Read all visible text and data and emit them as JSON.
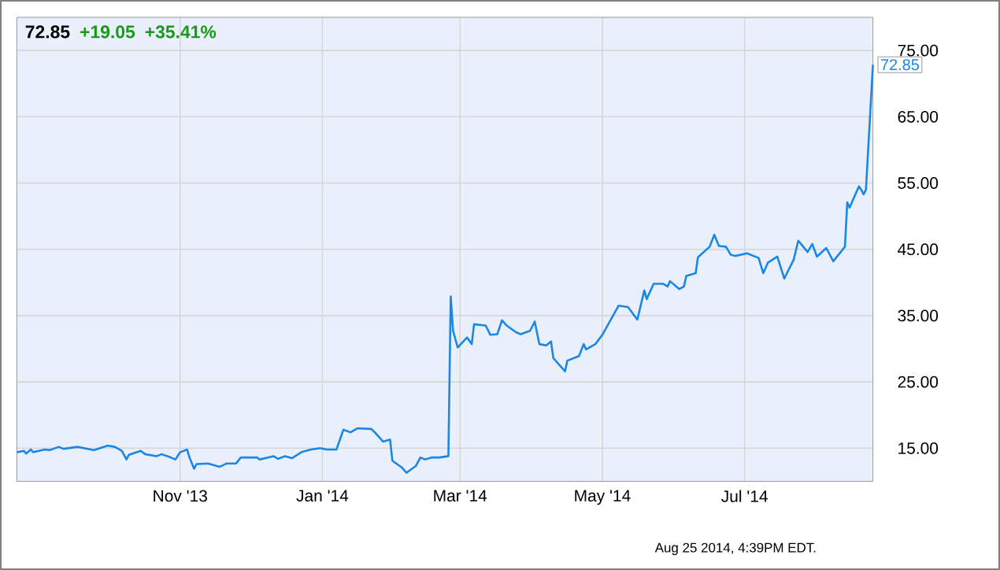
{
  "chart_data": {
    "type": "line",
    "title": "72.85",
    "annotations": [
      "+19.05",
      "+35.41%",
      {
        "text": "72.85",
        "x": "2014-08-25",
        "y": 72.85
      },
      "Aug 25 2014, 4:39PM EDT."
    ],
    "x": [
      "2013-08-23",
      "2013-08-26",
      "2013-08-27",
      "2013-08-29",
      "2013-08-30",
      "2013-09-04",
      "2013-09-06",
      "2013-09-10",
      "2013-09-12",
      "2013-09-18",
      "2013-09-25",
      "2013-10-01",
      "2013-10-04",
      "2013-10-07",
      "2013-10-09",
      "2013-10-10",
      "2013-10-15",
      "2013-10-17",
      "2013-10-22",
      "2013-10-24",
      "2013-10-28",
      "2013-10-30",
      "2013-11-01",
      "2013-11-04",
      "2013-11-05",
      "2013-11-07",
      "2013-11-08",
      "2013-11-13",
      "2013-11-18",
      "2013-11-21",
      "2013-11-25",
      "2013-11-27",
      "2013-12-04",
      "2013-12-05",
      "2013-12-11",
      "2013-12-13",
      "2013-12-16",
      "2013-12-19",
      "2013-12-23",
      "2013-12-27",
      "2013-12-31",
      "2014-01-03",
      "2014-01-07",
      "2014-01-10",
      "2014-01-13",
      "2014-01-16",
      "2014-01-22",
      "2014-01-24",
      "2014-01-27",
      "2014-01-30",
      "2014-01-31",
      "2014-02-04",
      "2014-02-06",
      "2014-02-10",
      "2014-02-12",
      "2014-02-14",
      "2014-02-17",
      "2014-02-20",
      "2014-02-24",
      "2014-02-25",
      "2014-02-26",
      "2014-02-28",
      "2014-03-04",
      "2014-03-06",
      "2014-03-07",
      "2014-03-12",
      "2014-03-14",
      "2014-03-17",
      "2014-03-18",
      "2014-03-19",
      "2014-03-21",
      "2014-03-25",
      "2014-03-27",
      "2014-03-31",
      "2014-04-02",
      "2014-04-04",
      "2014-04-07",
      "2014-04-09",
      "2014-04-10",
      "2014-04-15",
      "2014-04-16",
      "2014-04-21",
      "2014-04-23",
      "2014-04-24",
      "2014-04-28",
      "2014-05-01",
      "2014-05-07",
      "2014-05-08",
      "2014-05-12",
      "2014-05-16",
      "2014-05-19",
      "2014-05-20",
      "2014-05-23",
      "2014-05-27",
      "2014-05-29",
      "2014-05-30",
      "2014-06-03",
      "2014-06-05",
      "2014-06-06",
      "2014-06-10",
      "2014-06-11",
      "2014-06-16",
      "2014-06-18",
      "2014-06-20",
      "2014-06-23",
      "2014-06-25",
      "2014-06-27",
      "2014-07-02",
      "2014-07-07",
      "2014-07-09",
      "2014-07-10",
      "2014-07-11",
      "2014-07-15",
      "2014-07-18",
      "2014-07-22",
      "2014-07-24",
      "2014-07-28",
      "2014-07-30",
      "2014-08-01",
      "2014-08-05",
      "2014-08-08",
      "2014-08-13",
      "2014-08-14",
      "2014-08-15",
      "2014-08-19",
      "2014-08-20",
      "2014-08-21",
      "2014-08-22",
      "2014-08-25"
    ],
    "series": [
      {
        "color": "#1a87e6",
        "values": [
          14.4,
          14.6,
          14.2,
          14.8,
          14.4,
          14.8,
          14.7,
          15.2,
          14.9,
          15.2,
          14.7,
          15.4,
          15.2,
          14.6,
          13.3,
          14.0,
          14.6,
          14.1,
          13.8,
          14.1,
          13.6,
          13.3,
          14.4,
          14.8,
          13.6,
          11.9,
          12.6,
          12.7,
          12.2,
          12.7,
          12.7,
          13.6,
          13.6,
          13.3,
          13.8,
          13.4,
          13.8,
          13.5,
          14.4,
          14.8,
          15.0,
          14.8,
          14.8,
          17.8,
          17.4,
          18.0,
          17.9,
          17.2,
          16.0,
          16.3,
          13.1,
          12.1,
          11.3,
          12.3,
          13.6,
          13.3,
          13.6,
          13.6,
          13.8,
          37.9,
          32.7,
          30.2,
          31.7,
          30.7,
          33.7,
          33.5,
          32.1,
          32.2,
          33.3,
          34.3,
          33.5,
          32.5,
          32.2,
          32.7,
          34.1,
          30.7,
          30.5,
          31.1,
          28.6,
          26.6,
          28.2,
          28.9,
          30.7,
          29.9,
          30.7,
          32.1,
          35.9,
          36.5,
          36.3,
          34.4,
          38.8,
          37.5,
          39.8,
          39.8,
          39.4,
          40.2,
          39.0,
          39.4,
          41.0,
          41.4,
          43.8,
          45.4,
          47.2,
          45.5,
          45.4,
          44.2,
          44.0,
          44.4,
          43.7,
          41.4,
          42.2,
          43.0,
          43.9,
          40.6,
          43.4,
          46.3,
          44.6,
          45.8,
          43.9,
          45.2,
          43.2,
          45.4,
          52.1,
          51.3,
          54.5,
          54.0,
          53.3,
          54.0,
          72.85
        ]
      }
    ],
    "xlim": [
      "2013-08-23",
      "2014-08-25"
    ],
    "xticks": [
      {
        "value": "2013-11-01",
        "label": "Nov '13"
      },
      {
        "value": "2014-01-01",
        "label": "Jan '14"
      },
      {
        "value": "2014-03-01",
        "label": "Mar '14"
      },
      {
        "value": "2014-05-01",
        "label": "May '14"
      },
      {
        "value": "2014-07-01",
        "label": "Jul '14"
      }
    ],
    "ylim": [
      10,
      80
    ],
    "yticks": [
      {
        "value": 15,
        "label": "15.00"
      },
      {
        "value": 25,
        "label": "25.00"
      },
      {
        "value": 35,
        "label": "35.00"
      },
      {
        "value": 45,
        "label": "45.00"
      },
      {
        "value": 55,
        "label": "55.00"
      },
      {
        "value": 65,
        "label": "65.00"
      },
      {
        "value": 75,
        "label": "75.00"
      }
    ],
    "grid": true
  }
}
